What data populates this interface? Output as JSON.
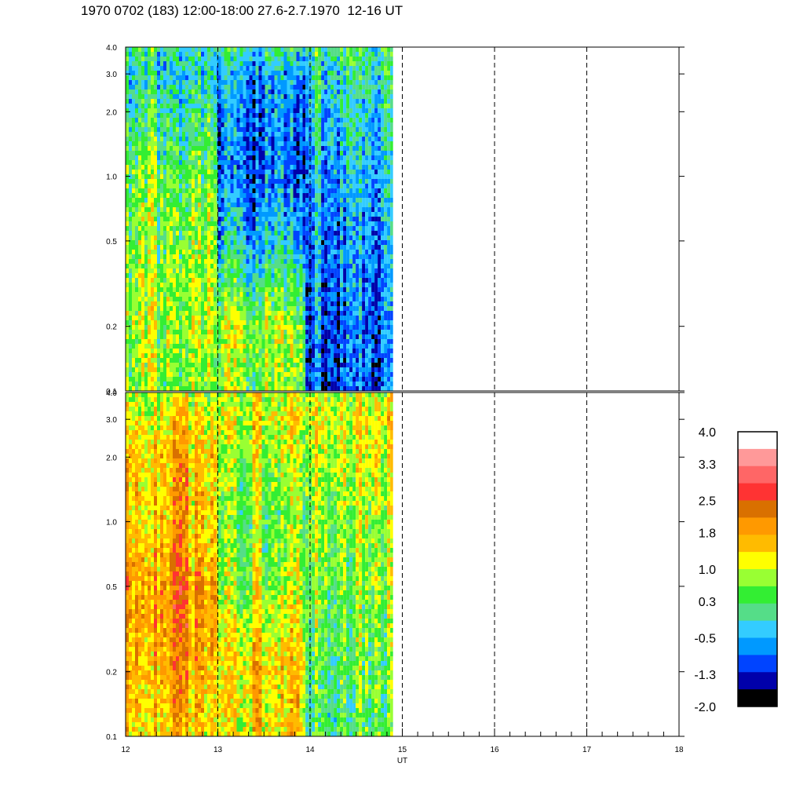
{
  "title": "1970 0702 (183) 12:00-18:00 27.6-2.7.1970  12-16 UT",
  "chart_data": [
    {
      "type": "heatmap",
      "panel": "upper",
      "y_scale": "log",
      "ylim": [
        0.1,
        4.0
      ],
      "y_ticks": [
        "0.1",
        "0.2",
        "0.5",
        "1.0",
        "2.0",
        "3.0",
        "4.0"
      ],
      "xlim": [
        12,
        18
      ],
      "data_x_range": [
        12.0,
        14.9
      ],
      "time_blocks": [
        {
          "x": [
            12.0,
            13.0
          ],
          "level_by_y": {
            "0.1": 0.7,
            "0.2": 0.9,
            "0.5": 0.7,
            "1.0": 0.5,
            "2.0": 0.1,
            "3.0": -0.2,
            "4.0": 0.1
          }
        },
        {
          "x": [
            13.0,
            13.95
          ],
          "level_by_y": {
            "0.1": 0.7,
            "0.2": 0.8,
            "0.5": -0.4,
            "1.0": -0.9,
            "2.0": -0.8,
            "3.0": -0.6,
            "4.0": 0.0
          }
        },
        {
          "x": [
            13.95,
            14.9
          ],
          "level_by_y": {
            "0.1": -1.0,
            "0.2": -0.9,
            "0.5": -0.7,
            "1.0": -0.5,
            "2.0": -0.2,
            "3.0": 0.0,
            "4.0": 0.2
          }
        }
      ]
    },
    {
      "type": "heatmap",
      "panel": "lower",
      "y_scale": "log",
      "ylim": [
        0.1,
        4.0
      ],
      "y_ticks": [
        "0.1",
        "0.2",
        "0.5",
        "1.0",
        "2.0",
        "3.0",
        "4.0"
      ],
      "xlim": [
        12,
        18
      ],
      "x_ticks": [
        "12",
        "13",
        "14",
        "15",
        "16",
        "17",
        "18"
      ],
      "xlabel": "UT",
      "data_x_range": [
        12.0,
        14.9
      ],
      "time_blocks": [
        {
          "x": [
            12.0,
            13.0
          ],
          "level_by_y": {
            "0.1": 1.5,
            "0.2": 1.8,
            "0.5": 2.0,
            "1.0": 1.6,
            "2.0": 1.6,
            "3.0": 1.3,
            "4.0": 1.0
          }
        },
        {
          "x": [
            13.0,
            13.95
          ],
          "level_by_y": {
            "0.1": 1.4,
            "0.2": 1.5,
            "0.5": 0.9,
            "1.0": 0.6,
            "2.0": 0.9,
            "3.0": 1.2,
            "4.0": 1.0
          }
        },
        {
          "x": [
            13.95,
            14.9
          ],
          "level_by_y": {
            "0.1": 0.4,
            "0.2": 0.5,
            "0.5": 0.7,
            "1.0": 0.9,
            "2.0": 1.1,
            "3.0": 1.3,
            "4.0": 1.0
          }
        }
      ]
    }
  ],
  "colorbar": {
    "labels": [
      "4.0",
      "3.3",
      "2.5",
      "1.8",
      "1.0",
      "0.3",
      "-0.5",
      "-1.3",
      "-2.0"
    ],
    "min": -2.0,
    "max": 4.0,
    "colors_top_to_bottom": [
      "#ffffff",
      "#ff9999",
      "#ff6666",
      "#ff3333",
      "#d97000",
      "#ff9900",
      "#ffbb00",
      "#ffff00",
      "#99ff33",
      "#33ee33",
      "#55dd88",
      "#33ccff",
      "#0099ff",
      "#0044ff",
      "#0000aa",
      "#000000"
    ]
  }
}
